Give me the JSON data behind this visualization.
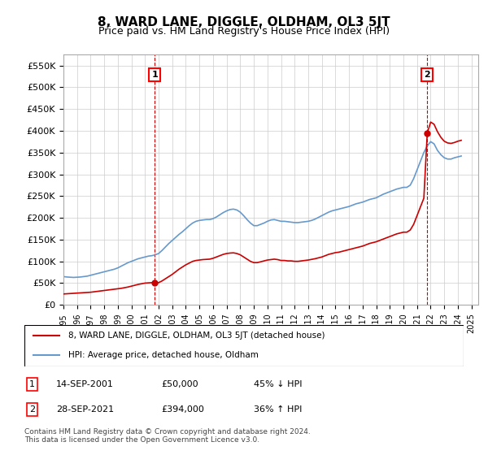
{
  "title": "8, WARD LANE, DIGGLE, OLDHAM, OL3 5JT",
  "subtitle": "Price paid vs. HM Land Registry's House Price Index (HPI)",
  "ylabel_ticks": [
    "£0",
    "£50K",
    "£100K",
    "£150K",
    "£200K",
    "£250K",
    "£300K",
    "£350K",
    "£400K",
    "£450K",
    "£500K",
    "£550K"
  ],
  "ytick_values": [
    0,
    50000,
    100000,
    150000,
    200000,
    250000,
    300000,
    350000,
    400000,
    450000,
    500000,
    550000
  ],
  "ylim": [
    0,
    575000
  ],
  "xlim_start": 1995,
  "xlim_end": 2025.5,
  "background_color": "#ffffff",
  "plot_bg_color": "#ffffff",
  "grid_color": "#cccccc",
  "hpi_color": "#6699cc",
  "price_color": "#cc0000",
  "transaction1_date_x": 2001.71,
  "transaction1_price": 50000,
  "transaction2_date_x": 2021.74,
  "transaction2_price": 394000,
  "annotation1_label": "1",
  "annotation2_label": "2",
  "legend_property_label": "8, WARD LANE, DIGGLE, OLDHAM, OL3 5JT (detached house)",
  "legend_hpi_label": "HPI: Average price, detached house, Oldham",
  "table_row1": [
    "1",
    "14-SEP-2001",
    "£50,000",
    "45% ↓ HPI"
  ],
  "table_row2": [
    "2",
    "28-SEP-2021",
    "£394,000",
    "36% ↑ HPI"
  ],
  "footnote": "Contains HM Land Registry data © Crown copyright and database right 2024.\nThis data is licensed under the Open Government Licence v3.0.",
  "title_fontsize": 11,
  "subtitle_fontsize": 9,
  "tick_fontsize": 8,
  "hpi_data_x": [
    1995.0,
    1995.25,
    1995.5,
    1995.75,
    1996.0,
    1996.25,
    1996.5,
    1996.75,
    1997.0,
    1997.25,
    1997.5,
    1997.75,
    1998.0,
    1998.25,
    1998.5,
    1998.75,
    1999.0,
    1999.25,
    1999.5,
    1999.75,
    2000.0,
    2000.25,
    2000.5,
    2000.75,
    2001.0,
    2001.25,
    2001.5,
    2001.75,
    2002.0,
    2002.25,
    2002.5,
    2002.75,
    2003.0,
    2003.25,
    2003.5,
    2003.75,
    2004.0,
    2004.25,
    2004.5,
    2004.75,
    2005.0,
    2005.25,
    2005.5,
    2005.75,
    2006.0,
    2006.25,
    2006.5,
    2006.75,
    2007.0,
    2007.25,
    2007.5,
    2007.75,
    2008.0,
    2008.25,
    2008.5,
    2008.75,
    2009.0,
    2009.25,
    2009.5,
    2009.75,
    2010.0,
    2010.25,
    2010.5,
    2010.75,
    2011.0,
    2011.25,
    2011.5,
    2011.75,
    2012.0,
    2012.25,
    2012.5,
    2012.75,
    2013.0,
    2013.25,
    2013.5,
    2013.75,
    2014.0,
    2014.25,
    2014.5,
    2014.75,
    2015.0,
    2015.25,
    2015.5,
    2015.75,
    2016.0,
    2016.25,
    2016.5,
    2016.75,
    2017.0,
    2017.25,
    2017.5,
    2017.75,
    2018.0,
    2018.25,
    2018.5,
    2018.75,
    2019.0,
    2019.25,
    2019.5,
    2019.75,
    2020.0,
    2020.25,
    2020.5,
    2020.75,
    2021.0,
    2021.25,
    2021.5,
    2021.75,
    2022.0,
    2022.25,
    2022.5,
    2022.75,
    2023.0,
    2023.25,
    2023.5,
    2023.75,
    2024.0,
    2024.25
  ],
  "hpi_data_y": [
    65000,
    64000,
    63500,
    63000,
    63500,
    64000,
    65000,
    66000,
    68000,
    70000,
    72000,
    74000,
    76000,
    78000,
    80000,
    82000,
    85000,
    89000,
    93000,
    97000,
    100000,
    103000,
    106000,
    108000,
    110000,
    112000,
    113000,
    115000,
    118000,
    125000,
    133000,
    141000,
    148000,
    155000,
    162000,
    168000,
    175000,
    182000,
    188000,
    192000,
    194000,
    195000,
    196000,
    196000,
    198000,
    202000,
    207000,
    212000,
    216000,
    219000,
    220000,
    218000,
    213000,
    205000,
    196000,
    188000,
    182000,
    182000,
    185000,
    188000,
    192000,
    195000,
    196000,
    194000,
    192000,
    192000,
    191000,
    190000,
    189000,
    189000,
    190000,
    191000,
    192000,
    194000,
    197000,
    201000,
    205000,
    209000,
    213000,
    216000,
    218000,
    220000,
    222000,
    224000,
    226000,
    229000,
    232000,
    234000,
    236000,
    239000,
    242000,
    244000,
    246000,
    250000,
    254000,
    257000,
    260000,
    263000,
    266000,
    268000,
    270000,
    270000,
    275000,
    290000,
    310000,
    330000,
    350000,
    365000,
    375000,
    370000,
    355000,
    345000,
    338000,
    335000,
    335000,
    338000,
    340000,
    342000
  ],
  "price_data_x": [
    1995.0,
    1995.25,
    1995.5,
    1995.75,
    1996.0,
    1996.25,
    1996.5,
    1996.75,
    1997.0,
    1997.25,
    1997.5,
    1997.75,
    1998.0,
    1998.25,
    1998.5,
    1998.75,
    1999.0,
    1999.25,
    1999.5,
    1999.75,
    2000.0,
    2000.25,
    2000.5,
    2000.75,
    2001.0,
    2001.25,
    2001.5,
    2001.75,
    2002.0,
    2002.25,
    2002.5,
    2002.75,
    2003.0,
    2003.25,
    2003.5,
    2003.75,
    2004.0,
    2004.25,
    2004.5,
    2004.75,
    2005.0,
    2005.25,
    2005.5,
    2005.75,
    2006.0,
    2006.25,
    2006.5,
    2006.75,
    2007.0,
    2007.25,
    2007.5,
    2007.75,
    2008.0,
    2008.25,
    2008.5,
    2008.75,
    2009.0,
    2009.25,
    2009.5,
    2009.75,
    2010.0,
    2010.25,
    2010.5,
    2010.75,
    2011.0,
    2011.25,
    2011.5,
    2011.75,
    2012.0,
    2012.25,
    2012.5,
    2012.75,
    2013.0,
    2013.25,
    2013.5,
    2013.75,
    2014.0,
    2014.25,
    2014.5,
    2014.75,
    2015.0,
    2015.25,
    2015.5,
    2015.75,
    2016.0,
    2016.25,
    2016.5,
    2016.75,
    2017.0,
    2017.25,
    2017.5,
    2017.75,
    2018.0,
    2018.25,
    2018.5,
    2018.75,
    2019.0,
    2019.25,
    2019.5,
    2019.75,
    2020.0,
    2020.25,
    2020.5,
    2020.75,
    2021.0,
    2021.25,
    2021.5,
    2021.75,
    2022.0,
    2022.25,
    2022.5,
    2022.75,
    2023.0,
    2023.25,
    2023.5,
    2023.75,
    2024.0,
    2024.25
  ],
  "price_data_y": [
    25000,
    25500,
    26000,
    26500,
    27000,
    27500,
    28000,
    28500,
    29000,
    30000,
    31000,
    32000,
    33000,
    34000,
    35000,
    36000,
    37000,
    38000,
    39500,
    41000,
    43000,
    45000,
    47000,
    48500,
    50000,
    50500,
    51000,
    50000,
    51000,
    55000,
    60000,
    65000,
    70000,
    76000,
    82000,
    87000,
    92000,
    96000,
    100000,
    102000,
    103000,
    104000,
    104500,
    105000,
    107000,
    110000,
    113000,
    116000,
    118000,
    119000,
    119500,
    118000,
    115000,
    110000,
    105000,
    100000,
    97000,
    97000,
    99000,
    101000,
    103000,
    104000,
    105000,
    104000,
    102000,
    102000,
    101000,
    101000,
    100000,
    100000,
    101000,
    102000,
    103000,
    104500,
    106000,
    108000,
    110000,
    113000,
    116000,
    118000,
    120000,
    121000,
    123000,
    125000,
    127000,
    129000,
    131000,
    133000,
    135000,
    138000,
    141000,
    143000,
    145000,
    148000,
    151000,
    154000,
    157000,
    160000,
    163000,
    165000,
    167000,
    167000,
    172000,
    185000,
    205000,
    225000,
    245000,
    394000,
    420000,
    415000,
    398000,
    385000,
    376000,
    372000,
    371000,
    373000,
    376000,
    378000
  ]
}
